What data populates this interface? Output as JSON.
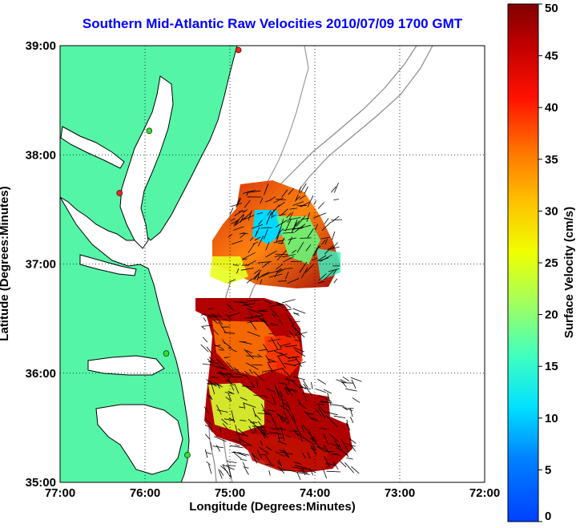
{
  "title": "Southern Mid-Atlantic Raw Velocities 2010/07/09 1700 GMT",
  "xlabel": "Longitude (Degrees:Minutes)",
  "ylabel": "Latitude (Degrees:Minutes)",
  "colorbar_label": "Surface Velocity (cm/s)",
  "x_ticks": [
    "77:00",
    "76:00",
    "75:00",
    "74:00",
    "73:00",
    "72:00"
  ],
  "y_ticks": [
    "39:00",
    "38:00",
    "37:00",
    "36:00",
    "35:00"
  ],
  "colorbar_ticks": [
    "0",
    "5",
    "10",
    "15",
    "20",
    "25",
    "30",
    "35",
    "40",
    "45",
    "50"
  ],
  "colors": {
    "land": "#55f5a8",
    "coastline": "#000000",
    "bathymetry": "#8a8a8a",
    "title": "#0000ff"
  },
  "chart_data": {
    "type": "heatmap",
    "title": "Southern Mid-Atlantic Raw Velocities 2010/07/09 1700 GMT",
    "xlabel": "Longitude (Degrees:Minutes)",
    "ylabel": "Latitude (Degrees:Minutes)",
    "xlim": [
      -77.0,
      -72.0
    ],
    "ylim": [
      35.0,
      39.0
    ],
    "colorbar": {
      "label": "Surface Velocity (cm/s)",
      "range": [
        0,
        50
      ],
      "colormap": "jet"
    },
    "grid": true,
    "stations": [
      {
        "lon": -74.9,
        "lat": 38.96,
        "status": "red"
      },
      {
        "lon": -75.95,
        "lat": 38.22,
        "status": "green"
      },
      {
        "lon": -76.3,
        "lat": 37.65,
        "status": "red"
      },
      {
        "lon": -75.75,
        "lat": 36.18,
        "status": "green"
      },
      {
        "lon": -75.5,
        "lat": 35.25,
        "status": "green"
      }
    ]
  }
}
